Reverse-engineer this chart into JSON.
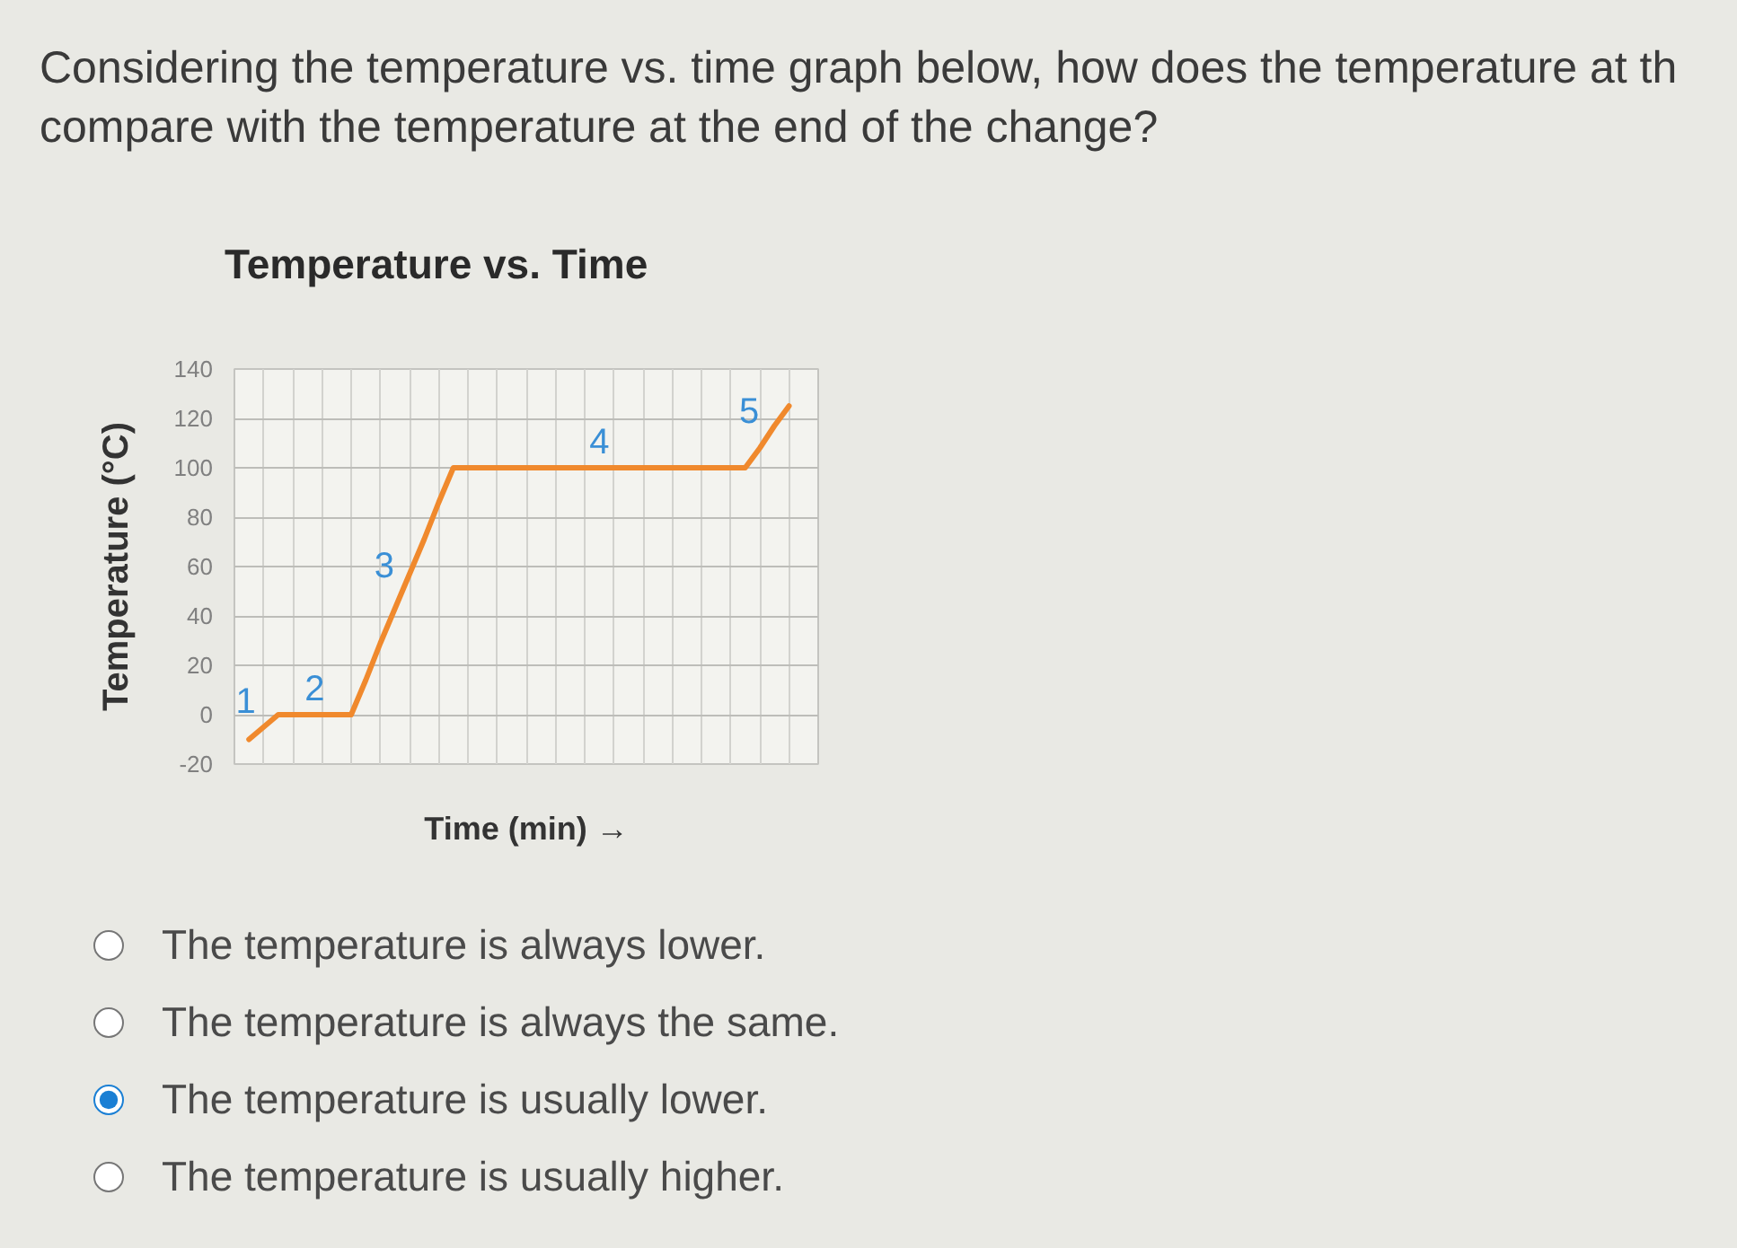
{
  "chart_data": [
    {
      "type": "other",
      "title": "Considering the temperature vs. time graph below, how does the temperature at th\ncompare with the temperature at the end of the change?"
    },
    {
      "type": "line",
      "title": "Temperature vs. Time",
      "xlabel": "Time (min) →",
      "ylabel": "Temperature (°C)",
      "categories": [
        null,
        null,
        null,
        null,
        null,
        null,
        null,
        null,
        null,
        null,
        null,
        null,
        null,
        null,
        null,
        null,
        null,
        null,
        null,
        null,
        null,
        null,
        null,
        null,
        null,
        null,
        null,
        null,
        null,
        null,
        null,
        null,
        null,
        null,
        null,
        null,
        null,
        null
      ],
      "series": [
        {
          "color": "#f0892d",
          "values": [
            -10,
            -5,
            0,
            0,
            0,
            0,
            0,
            0,
            14,
            29,
            43,
            57,
            71,
            86,
            100,
            100,
            100,
            100,
            100,
            100,
            100,
            100,
            100,
            100,
            100,
            100,
            100,
            100,
            100,
            100,
            100,
            100,
            100,
            100,
            100,
            108,
            117,
            125
          ]
        }
      ],
      "ylim": [
        -20,
        140
      ],
      "yticks": [
        -20,
        0,
        20,
        40,
        60,
        80,
        100,
        120,
        140
      ],
      "grid": true,
      "tick_labels": "y",
      "annotations": [
        "1",
        "2",
        "3",
        "4",
        "5"
      ]
    },
    {
      "type": "other",
      "annotations": [
        "The temperature is always lower.",
        "The temperature is always the same.",
        "The temperature is usually lower.",
        "The temperature is usually higher."
      ],
      "colors": [
        null,
        null,
        "#1a7fd4",
        null
      ]
    }
  ]
}
